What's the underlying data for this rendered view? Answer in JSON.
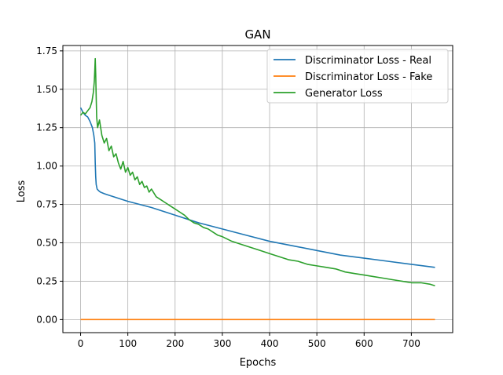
{
  "chart_data": {
    "type": "line",
    "title": "GAN",
    "xlabel": "Epochs",
    "ylabel": "Loss",
    "xlim": [
      -37.5,
      787.5
    ],
    "ylim": [
      -0.085,
      1.785
    ],
    "x_ticks": [
      0,
      100,
      200,
      300,
      400,
      500,
      600,
      700
    ],
    "y_ticks": [
      0.0,
      0.25,
      0.5,
      0.75,
      1.0,
      1.25,
      1.5,
      1.75
    ],
    "x_tick_labels": [
      "0",
      "100",
      "200",
      "300",
      "400",
      "500",
      "600",
      "700"
    ],
    "y_tick_labels": [
      "0.00",
      "0.25",
      "0.50",
      "0.75",
      "1.00",
      "1.25",
      "1.50",
      "1.75"
    ],
    "grid": true,
    "legend_position": "top-right",
    "series": [
      {
        "name": "Discriminator Loss - Real",
        "color": "#1f77b4",
        "x": [
          0,
          5,
          10,
          15,
          20,
          25,
          28,
          30,
          31,
          32,
          33,
          35,
          38,
          42,
          50,
          60,
          80,
          100,
          150,
          200,
          250,
          300,
          350,
          400,
          450,
          500,
          550,
          600,
          650,
          700,
          750
        ],
        "y": [
          1.38,
          1.35,
          1.33,
          1.32,
          1.29,
          1.25,
          1.2,
          1.15,
          1.02,
          0.93,
          0.88,
          0.85,
          0.84,
          0.83,
          0.82,
          0.81,
          0.79,
          0.77,
          0.73,
          0.68,
          0.63,
          0.59,
          0.55,
          0.51,
          0.48,
          0.45,
          0.42,
          0.4,
          0.38,
          0.36,
          0.34
        ]
      },
      {
        "name": "Discriminator Loss - Fake",
        "color": "#ff7f0e",
        "x": [
          0,
          750
        ],
        "y": [
          0.0,
          0.0
        ]
      },
      {
        "name": "Generator Loss",
        "color": "#2ca02c",
        "x": [
          0,
          5,
          10,
          15,
          20,
          24,
          27,
          29,
          30,
          31,
          32,
          33,
          34,
          36,
          40,
          45,
          50,
          55,
          60,
          65,
          70,
          75,
          80,
          85,
          90,
          95,
          100,
          105,
          110,
          115,
          120,
          125,
          130,
          135,
          140,
          145,
          150,
          160,
          170,
          180,
          190,
          200,
          210,
          220,
          230,
          240,
          250,
          260,
          270,
          280,
          290,
          300,
          320,
          340,
          360,
          380,
          400,
          420,
          440,
          460,
          480,
          500,
          520,
          540,
          560,
          580,
          600,
          620,
          640,
          660,
          680,
          700,
          720,
          740,
          750
        ],
        "y": [
          1.33,
          1.35,
          1.34,
          1.36,
          1.38,
          1.42,
          1.48,
          1.55,
          1.62,
          1.7,
          1.6,
          1.45,
          1.32,
          1.25,
          1.3,
          1.2,
          1.15,
          1.18,
          1.1,
          1.13,
          1.06,
          1.08,
          1.02,
          0.98,
          1.03,
          0.96,
          0.99,
          0.94,
          0.96,
          0.91,
          0.93,
          0.88,
          0.9,
          0.86,
          0.87,
          0.83,
          0.85,
          0.8,
          0.78,
          0.76,
          0.74,
          0.72,
          0.7,
          0.68,
          0.65,
          0.63,
          0.62,
          0.6,
          0.59,
          0.57,
          0.55,
          0.54,
          0.51,
          0.49,
          0.47,
          0.45,
          0.43,
          0.41,
          0.39,
          0.38,
          0.36,
          0.35,
          0.34,
          0.33,
          0.31,
          0.3,
          0.29,
          0.28,
          0.27,
          0.26,
          0.25,
          0.24,
          0.24,
          0.23,
          0.22
        ]
      }
    ]
  }
}
